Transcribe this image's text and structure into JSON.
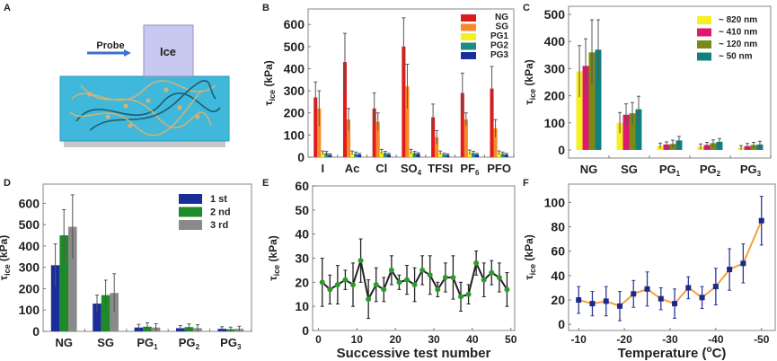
{
  "panel_labels": [
    "A",
    "B",
    "C",
    "D",
    "E",
    "F"
  ],
  "schematic": {
    "probe_label": "Probe",
    "ice_label": "Ice",
    "colors": {
      "gel": "#3fb8dc",
      "ice": "#c8c8f0",
      "arrow": "#3b6fd4",
      "base": "#c8c8c8"
    }
  },
  "chart_data": [
    {
      "panel": "B",
      "type": "bar",
      "ylabel": "τice (kPa)",
      "ylim": [
        0,
        670
      ],
      "yticks": [
        0,
        100,
        200,
        300,
        400,
        500,
        600
      ],
      "categories": [
        "I",
        "Ac",
        "Cl",
        "SO4",
        "TFSI",
        "PF6",
        "PFO"
      ],
      "legend_position": "top-right",
      "series": [
        {
          "name": "NG",
          "color": "#e01b1b",
          "values": [
            270,
            430,
            220,
            500,
            180,
            290,
            310
          ],
          "errors": [
            70,
            130,
            70,
            130,
            60,
            90,
            100
          ]
        },
        {
          "name": "SG",
          "color": "#f58a2a",
          "values": [
            220,
            170,
            160,
            320,
            90,
            170,
            130
          ],
          "errors": [
            80,
            50,
            40,
            100,
            30,
            30,
            40
          ]
        },
        {
          "name": "PG1",
          "color": "#f5f020",
          "values": [
            20,
            20,
            25,
            25,
            20,
            22,
            20
          ],
          "errors": [
            8,
            8,
            10,
            10,
            8,
            10,
            8
          ]
        },
        {
          "name": "PG2",
          "color": "#1f8a8a",
          "values": [
            18,
            15,
            18,
            18,
            12,
            18,
            15
          ],
          "errors": [
            8,
            8,
            8,
            8,
            6,
            8,
            8
          ]
        },
        {
          "name": "PG3",
          "color": "#1a2e9a",
          "values": [
            10,
            12,
            12,
            15,
            10,
            12,
            12
          ],
          "errors": [
            5,
            5,
            5,
            5,
            5,
            5,
            5
          ]
        }
      ]
    },
    {
      "panel": "C",
      "type": "bar",
      "ylabel": "τice (kPa)",
      "ylim": [
        -30,
        530
      ],
      "yticks": [
        0,
        100,
        200,
        300,
        400,
        500
      ],
      "categories": [
        "NG",
        "SG",
        "PG1",
        "PG2",
        "PG3"
      ],
      "legend_position": "top-right",
      "series": [
        {
          "name": "~ 820 nm",
          "color": "#f5f020",
          "values": [
            290,
            100,
            15,
            12,
            8
          ],
          "errors": [
            95,
            38,
            10,
            10,
            8
          ]
        },
        {
          "name": "~ 410 nm",
          "color": "#e0186e",
          "values": [
            310,
            130,
            20,
            18,
            14
          ],
          "errors": [
            100,
            40,
            10,
            10,
            10
          ]
        },
        {
          "name": "~ 120 nm",
          "color": "#7a8a14",
          "values": [
            360,
            135,
            22,
            25,
            18
          ],
          "errors": [
            120,
            40,
            14,
            12,
            10
          ]
        },
        {
          "name": "~ 50 nm",
          "color": "#12807e",
          "values": [
            370,
            150,
            35,
            30,
            20
          ],
          "errors": [
            110,
            48,
            15,
            12,
            12
          ]
        }
      ]
    },
    {
      "panel": "D",
      "type": "bar",
      "ylabel": "τice (kPa)",
      "ylim": [
        0,
        690
      ],
      "yticks": [
        0,
        100,
        200,
        300,
        400,
        500,
        600
      ],
      "categories": [
        "NG",
        "SG",
        "PG1",
        "PG2",
        "PG3"
      ],
      "legend_position": "top-right",
      "series": [
        {
          "name": "1 st",
          "color": "#1a2e9a",
          "values": [
            310,
            130,
            18,
            15,
            12
          ],
          "errors": [
            100,
            40,
            15,
            12,
            10
          ]
        },
        {
          "name": "2 nd",
          "color": "#1e8a2a",
          "values": [
            450,
            170,
            22,
            20,
            10
          ],
          "errors": [
            120,
            70,
            18,
            15,
            10
          ]
        },
        {
          "name": "3 rd",
          "color": "#8a8a8a",
          "values": [
            490,
            180,
            18,
            15,
            12
          ],
          "errors": [
            150,
            90,
            18,
            16,
            12
          ]
        }
      ]
    },
    {
      "panel": "E",
      "type": "line",
      "xlabel": "Successive test number",
      "ylabel": "τice (kPa)",
      "xlim": [
        -1.5,
        51
      ],
      "ylim": [
        0,
        60
      ],
      "xticks": [
        0,
        10,
        20,
        30,
        40,
        50
      ],
      "yticks": [
        0,
        10,
        20,
        30,
        40,
        50,
        60
      ],
      "line_color": "#222222",
      "marker_color": "#2e9a2e",
      "x": [
        1,
        3,
        5,
        7,
        9,
        11,
        13,
        15,
        17,
        19,
        21,
        23,
        25,
        27,
        29,
        31,
        33,
        35,
        37,
        39,
        41,
        43,
        45,
        47,
        49
      ],
      "y": [
        20,
        17,
        19,
        21,
        19,
        29,
        13,
        19,
        17,
        25,
        20,
        21,
        19,
        25,
        23,
        17,
        22,
        22,
        14,
        15,
        28,
        21,
        24,
        22,
        17
      ],
      "err_low": [
        10,
        11,
        11,
        17,
        10,
        20,
        5,
        12,
        12,
        19,
        17,
        15,
        12,
        19,
        15,
        14,
        16,
        13,
        8,
        11,
        23,
        14,
        19,
        16,
        10
      ],
      "err_high": [
        30,
        23,
        27,
        25,
        28,
        38,
        21,
        26,
        22,
        31,
        23,
        27,
        26,
        31,
        31,
        20,
        28,
        31,
        20,
        19,
        33,
        28,
        29,
        28,
        24
      ]
    },
    {
      "panel": "F",
      "type": "line",
      "xlabel": "Temperature (oC)",
      "ylabel": "τice (kPa)",
      "xlim": [
        -7.8,
        -53
      ],
      "ylim": [
        -5,
        115
      ],
      "xticks": [
        -10,
        -20,
        -30,
        -40,
        -50
      ],
      "yticks": [
        0,
        20,
        40,
        60,
        80,
        100
      ],
      "line_color": "#f5a040",
      "marker_color": "#1a2a8a",
      "x": [
        -10,
        -13,
        -16,
        -19,
        -22,
        -25,
        -28,
        -31,
        -34,
        -37,
        -40,
        -43,
        -46,
        -50
      ],
      "y": [
        20,
        17,
        19,
        15,
        25,
        29,
        21,
        17,
        30,
        22,
        31,
        45,
        50,
        85
      ],
      "errors": [
        11,
        10,
        12,
        12,
        11,
        14,
        9,
        12,
        9,
        9,
        15,
        17,
        16,
        20
      ]
    }
  ]
}
